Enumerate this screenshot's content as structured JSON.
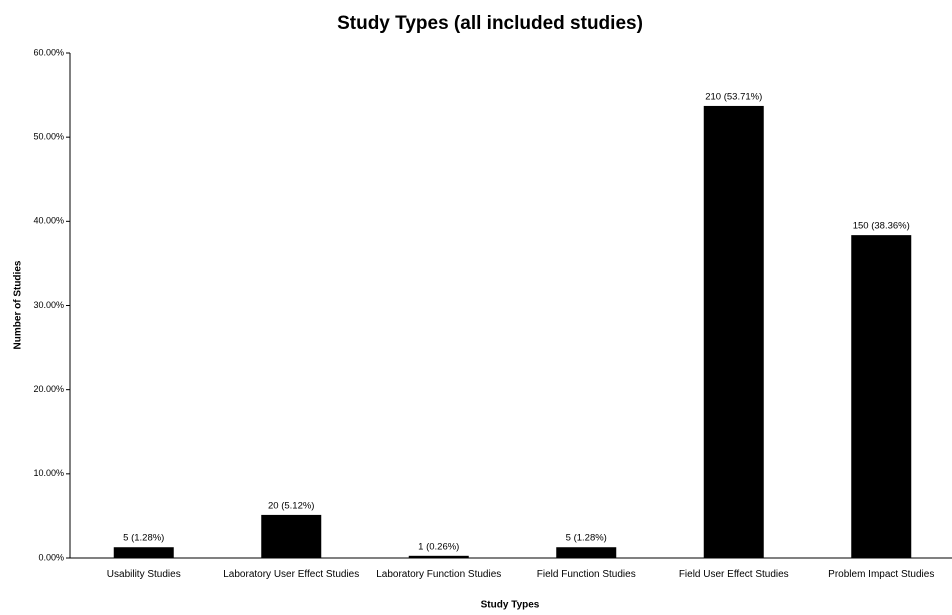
{
  "chart_data": {
    "type": "bar",
    "title": "Study Types (all included studies)",
    "x_label": "Study Types",
    "y_label": "Number of Studies",
    "categories": [
      "Usability Studies",
      "Laboratory User Effect Studies",
      "Laboratory Function Studies",
      "Field Function Studies",
      "Field User Effect Studies",
      "Problem Impact Studies"
    ],
    "values": [
      1.28,
      5.12,
      0.26,
      1.28,
      53.71,
      38.36
    ],
    "value_labels": [
      "5 (1.28%)",
      "20 (5.12%)",
      "1 (0.26%)",
      "5 (1.28%)",
      "210 (53.71%)",
      "150 (38.36%)"
    ],
    "color": "#000000",
    "ylim": [
      0,
      60
    ],
    "yticks": [
      {
        "value": 0,
        "label": "0.00%"
      },
      {
        "value": 10,
        "label": "10.00%"
      },
      {
        "value": 20,
        "label": "20.00%"
      },
      {
        "value": 30,
        "label": "30.00%"
      },
      {
        "value": 40,
        "label": "40.00%"
      },
      {
        "value": 50,
        "label": "50.00%"
      },
      {
        "value": 60,
        "label": "60.00%"
      }
    ],
    "grid": false
  }
}
